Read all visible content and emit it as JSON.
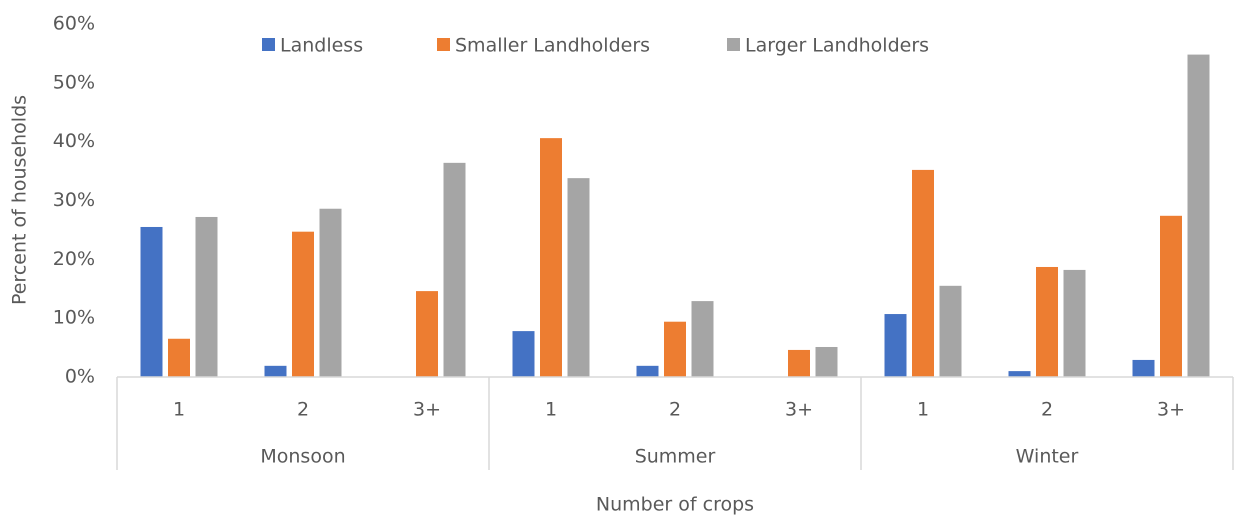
{
  "chart_data": {
    "type": "bar",
    "x_label": "Number of crops",
    "y_label": "Percent of households",
    "categories": [
      "1",
      "2",
      "3+",
      "1",
      "2",
      "3+",
      "1",
      "2",
      "3+"
    ],
    "groups": [
      "Monsoon",
      "Summer",
      "Winter"
    ],
    "series": [
      {
        "name": "Landless",
        "color": "#4472c4",
        "values": [
          25.5,
          1.9,
          0,
          7.8,
          1.9,
          0,
          10.7,
          1.0,
          2.9
        ]
      },
      {
        "name": "Smaller Landholders",
        "color": "#ed7d31",
        "values": [
          6.5,
          24.7,
          14.6,
          40.6,
          9.4,
          4.6,
          35.2,
          18.7,
          27.4
        ]
      },
      {
        "name": "Larger Landholders",
        "color": "#a5a5a5",
        "values": [
          27.2,
          28.6,
          36.4,
          33.8,
          12.9,
          5.1,
          15.5,
          18.2,
          54.8
        ]
      }
    ],
    "ylim": [
      0,
      60
    ],
    "yticks": [
      {
        "value": 0,
        "label": "0%"
      },
      {
        "value": 10,
        "label": "10%"
      },
      {
        "value": 20,
        "label": "20%"
      },
      {
        "value": 30,
        "label": "30%"
      },
      {
        "value": 40,
        "label": "40%"
      },
      {
        "value": 50,
        "label": "50%"
      },
      {
        "value": 60,
        "label": "60%"
      }
    ],
    "grid": false,
    "legend": "top"
  }
}
